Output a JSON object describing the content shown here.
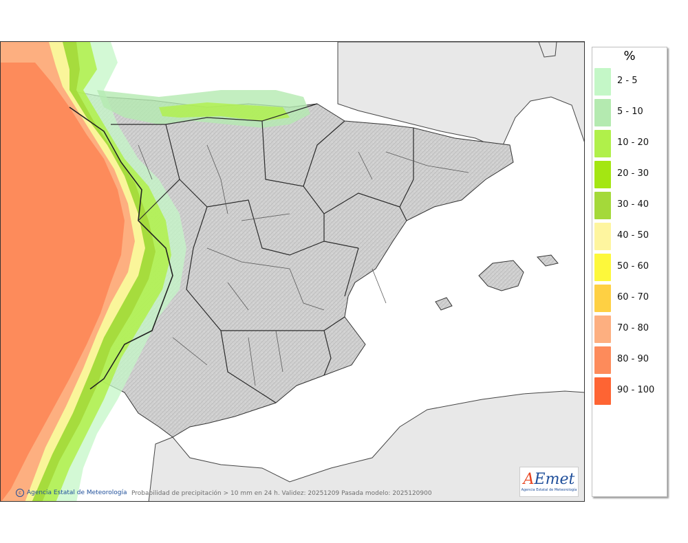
{
  "legend": {
    "title": "%",
    "items": [
      {
        "label": "2 - 5",
        "color": "#c4f7c7"
      },
      {
        "label": "5 - 10",
        "color": "#b4eab0"
      },
      {
        "label": "10 - 20",
        "color": "#b0f04a"
      },
      {
        "label": "20 - 30",
        "color": "#a4e612"
      },
      {
        "label": "30 - 40",
        "color": "#a4d93a"
      },
      {
        "label": "40 - 50",
        "color": "#fef59f"
      },
      {
        "label": "50 - 60",
        "color": "#fdf83b"
      },
      {
        "label": "60 - 70",
        "color": "#fed043"
      },
      {
        "label": "70 - 80",
        "color": "#fdaf80"
      },
      {
        "label": "80 - 90",
        "color": "#fd8b5b"
      },
      {
        "label": "90 - 100",
        "color": "#fe6433"
      }
    ]
  },
  "credit": "Agencia Estatal de Meteorología",
  "caption": "Probabilidad de precipitación > 10 mm en 24 h. Validez: 20251209 Pasada modelo: 2025120900",
  "logo": {
    "word_a": "A",
    "word_e": "E",
    "word_met": "met",
    "subtitle": "Agencia Estatal de Meteorología"
  },
  "colors": {
    "land": "#d3d3d3",
    "foreign_land": "#e8e8e8",
    "sea": "#ffffff",
    "border": "#222222"
  }
}
